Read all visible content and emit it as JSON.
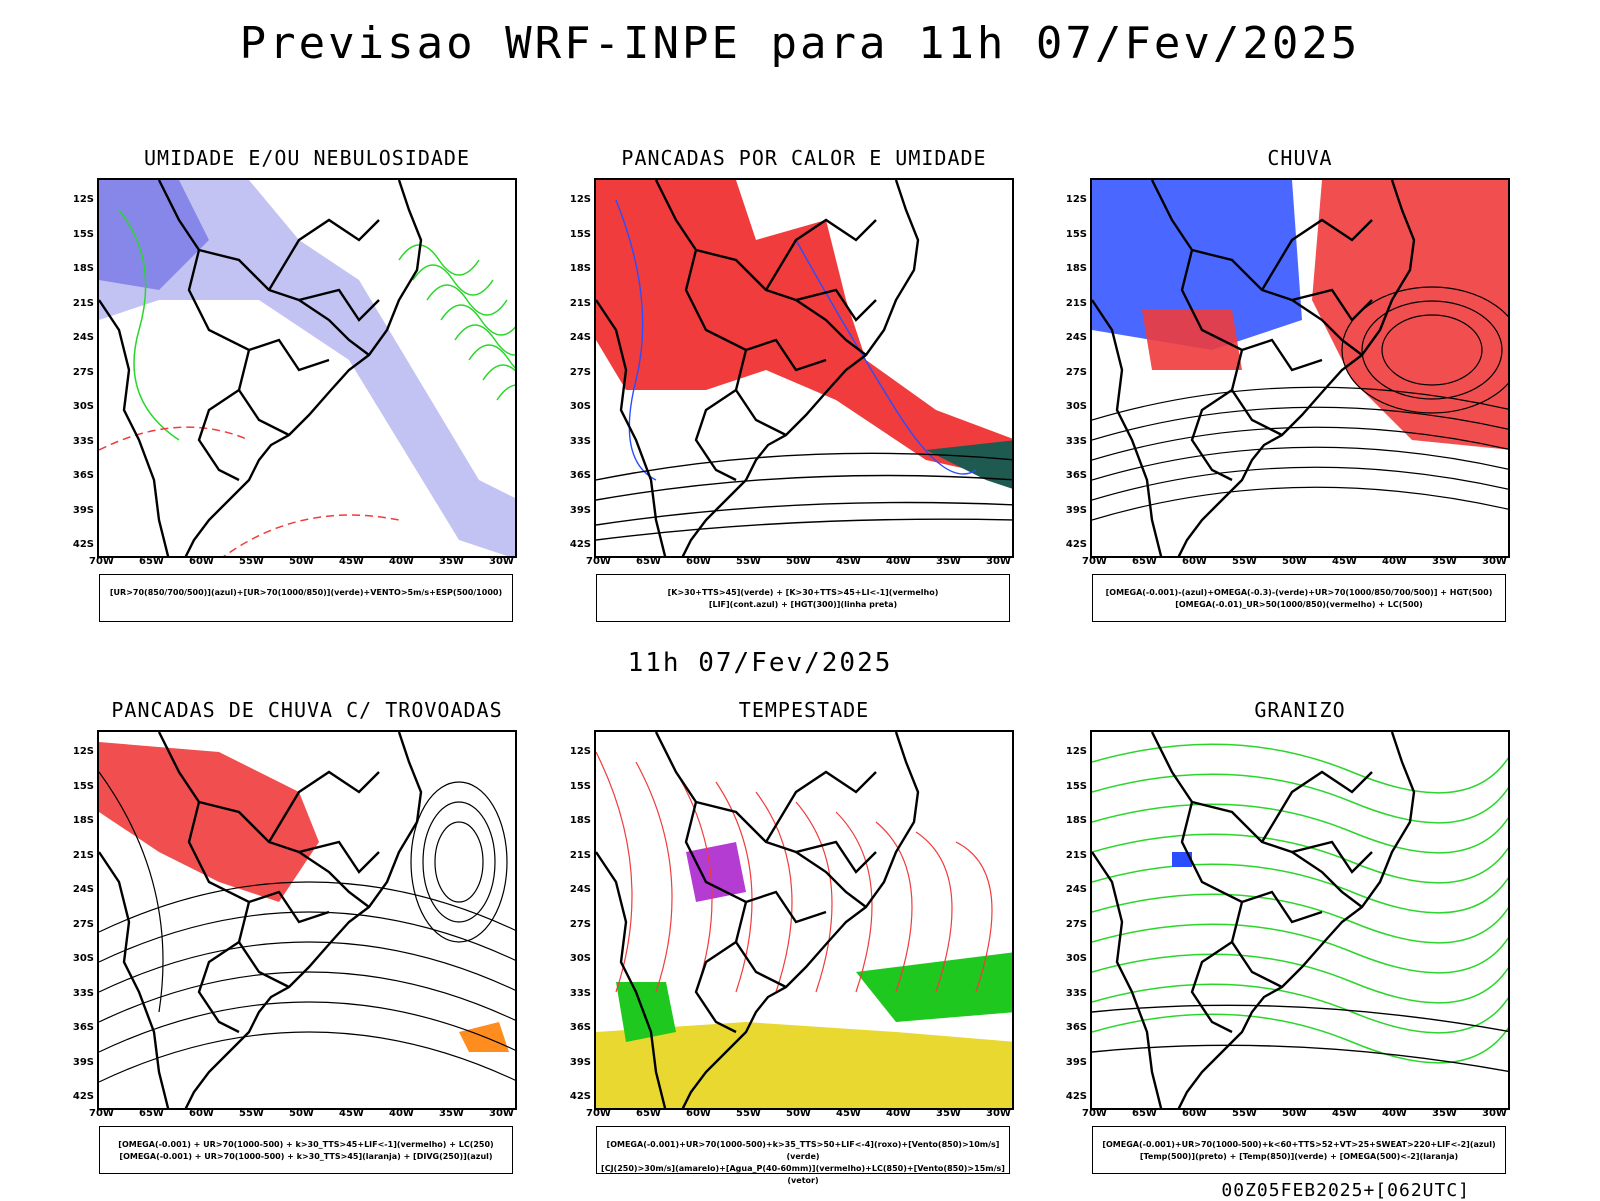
{
  "title": "Previsao WRF-INPE  para 11h 07/Fev/2025",
  "mid_title": "11h 07/Fev/2025",
  "footer": "00Z05FEB2025+[062UTC]",
  "lat_labels": [
    "12S",
    "15S",
    "18S",
    "21S",
    "24S",
    "27S",
    "30S",
    "33S",
    "36S",
    "39S",
    "42S"
  ],
  "lon_labels": [
    "70W",
    "65W",
    "60W",
    "55W",
    "50W",
    "45W",
    "40W",
    "35W",
    "30W"
  ],
  "colors": {
    "red": "#f03c3c",
    "blue": "#2a4dff",
    "green": "#2ad62a",
    "lavender": "#b4b4f0",
    "yellow": "#e8d830",
    "purple": "#b43cd2",
    "orange": "#ff8c1e",
    "teal": "#1e5a50"
  },
  "panels": [
    {
      "title": "UMIDADE E/OU NEBULOSIDADE",
      "legend": [
        "[UR>70(850/700/500)](azul)+[UR>70(1000/850)](verde)+VENTO>5m/s+ESP(500/1000)"
      ]
    },
    {
      "title": "PANCADAS POR CALOR E UMIDADE",
      "legend": [
        "[K>30+TTS>45](verde) + [K>30+TTS>45+LI<-1](vermelho)",
        "[LIF](cont.azul) + [HGT(300)](linha preta)"
      ]
    },
    {
      "title": "CHUVA",
      "legend": [
        "[OMEGA(-0.001)-(azul)+OMEGA(-0.3)-(verde)+UR>70(1000/850/700/500)] + HGT(500)",
        "[OMEGA(-0.01)_UR>50(1000/850)(vermelho) + LC(500)"
      ]
    },
    {
      "title": "PANCADAS DE CHUVA C/ TROVOADAS",
      "legend": [
        "[OMEGA(-0.001) + UR>70(1000-500) + k>30_TTS>45+LIF<-1](vermelho) + LC(250)",
        "[OMEGA(-0.001) + UR>70(1000-500) + k>30_TTS>45](laranja) + [DIVG(250)](azul)"
      ]
    },
    {
      "title": "TEMPESTADE",
      "legend": [
        "[OMEGA(-0.001)+UR>70(1000-500)+k>35_TTS>50+LIF<-4](roxo)+[Vento(850)>10m/s](verde)",
        "[CJ(250)>30m/s](amarelo)+[Agua_P(40-60mm)](vermelho)+LC(850)+[Vento(850)>15m/s](vetor)"
      ]
    },
    {
      "title": "GRANIZO",
      "legend": [
        "[OMEGA(-0.001)+UR>70(1000-500)+k<60+TTS>52+VT>25+SWEAT>220+LIF<-2](azul)",
        "[Temp(500)](preto) + [Temp(850)](verde) + [OMEGA(500)<-2](laranja)"
      ]
    }
  ]
}
